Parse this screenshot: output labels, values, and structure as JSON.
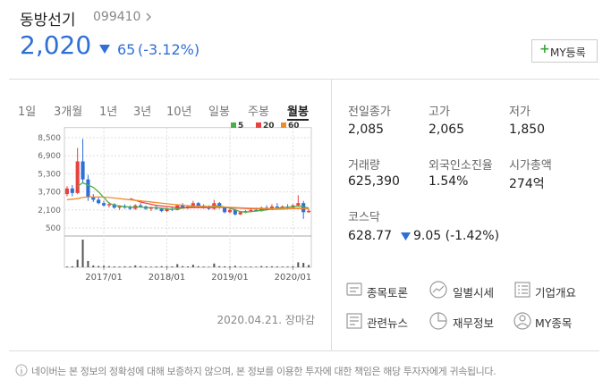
{
  "header": {
    "name": "동방선기",
    "code": "099410",
    "price": "2,020",
    "change": "65",
    "change_rate": "(-3.12%)",
    "my_button": "MY등록"
  },
  "tabs": [
    "1일",
    "3개월",
    "1년",
    "3년",
    "10년",
    "일봉",
    "주봉",
    "월봉"
  ],
  "chart_data": {
    "type": "candlestick",
    "categories": [
      null,
      null,
      null,
      null,
      null,
      null,
      null,
      "2017/01",
      null,
      null,
      null,
      null,
      null,
      null,
      null,
      null,
      null,
      null,
      null,
      "2018/01",
      null,
      null,
      null,
      null,
      null,
      null,
      null,
      null,
      null,
      null,
      null,
      "2019/01",
      null,
      null,
      null,
      null,
      null,
      null,
      null,
      null,
      null,
      null,
      null,
      "2020/01",
      null,
      null,
      null
    ],
    "open": [
      3500,
      4000,
      3600,
      6400,
      4800,
      3200,
      3000,
      2700,
      2500,
      2600,
      2300,
      2400,
      2300,
      2200,
      2500,
      2400,
      2200,
      2300,
      2200,
      2000,
      2200,
      2100,
      2500,
      2300,
      2400,
      2700,
      2400,
      2300,
      2200,
      2700,
      2300,
      1900,
      2100,
      1700,
      1900,
      1950,
      2100,
      2000,
      2300,
      2200,
      2400,
      2300,
      2400,
      2300,
      2500,
      2700,
      1900
    ],
    "high": [
      4200,
      4300,
      7600,
      8400,
      5200,
      3500,
      3200,
      2900,
      2800,
      2700,
      2500,
      2600,
      2500,
      2600,
      2700,
      2500,
      2400,
      2500,
      2300,
      2300,
      2400,
      2600,
      2700,
      2500,
      2900,
      2800,
      2600,
      2500,
      3000,
      2800,
      2400,
      2200,
      2200,
      2000,
      2100,
      2200,
      2300,
      2400,
      2500,
      2600,
      2700,
      2500,
      2600,
      2600,
      3400,
      2900,
      2200
    ],
    "low": [
      3300,
      3300,
      3500,
      4500,
      2900,
      2800,
      2600,
      2400,
      2300,
      2200,
      2100,
      2200,
      2100,
      2100,
      2300,
      2100,
      2000,
      2100,
      1900,
      1900,
      2000,
      2050,
      2200,
      2150,
      2300,
      2300,
      2200,
      2100,
      2100,
      2200,
      1800,
      1800,
      1600,
      1650,
      1800,
      1900,
      1950,
      1950,
      2100,
      2100,
      2200,
      2200,
      2200,
      2200,
      2400,
      1300,
      1850
    ],
    "close": [
      4000,
      3600,
      6400,
      4800,
      3200,
      3000,
      2700,
      2500,
      2600,
      2300,
      2400,
      2300,
      2200,
      2500,
      2400,
      2200,
      2300,
      2200,
      2000,
      2200,
      2100,
      2500,
      2300,
      2400,
      2700,
      2400,
      2300,
      2200,
      2700,
      2300,
      1900,
      2100,
      1700,
      1900,
      2000,
      2100,
      2000,
      2300,
      2200,
      2400,
      2300,
      2400,
      2300,
      2500,
      2700,
      1900,
      2020
    ],
    "volume": [
      600,
      800,
      6000,
      22000,
      5000,
      1500,
      1000,
      1200,
      900,
      700,
      600,
      800,
      700,
      1500,
      900,
      600,
      500,
      700,
      900,
      800,
      700,
      2500,
      900,
      700,
      2000,
      800,
      600,
      500,
      3000,
      900,
      800,
      700,
      1200,
      600,
      500,
      600,
      500,
      1000,
      700,
      800,
      700,
      600,
      600,
      900,
      4000,
      3500,
      1800
    ],
    "up_color": "#e8423f",
    "down_color": "#2f6fd6",
    "series": [
      {
        "name": "5",
        "color": "#4cb04a",
        "values": [
          null,
          null,
          4200,
          4500,
          4300,
          4100,
          3700,
          3200,
          2700,
          2500,
          2450,
          2400,
          2350,
          2350,
          2350,
          2300,
          2300,
          2300,
          2250,
          2200,
          2150,
          2200,
          2250,
          2300,
          2400,
          2450,
          2420,
          2400,
          2450,
          2450,
          2350,
          2250,
          2100,
          1950,
          1900,
          1950,
          2000,
          2050,
          2100,
          2200,
          2250,
          2300,
          2330,
          2380,
          2440,
          2360,
          2280
        ]
      },
      {
        "name": "20",
        "color": "#e8423f",
        "values": [
          null,
          null,
          null,
          null,
          null,
          null,
          null,
          null,
          null,
          null,
          null,
          null,
          3100,
          2950,
          2800,
          2700,
          2600,
          2500,
          2450,
          2400,
          2350,
          2320,
          2300,
          2300,
          2300,
          2310,
          2300,
          2300,
          2320,
          2330,
          2320,
          2300,
          2270,
          2250,
          2230,
          2210,
          2200,
          2180,
          2170,
          2160,
          2170,
          2180,
          2200,
          2220,
          2240,
          2220,
          2200
        ]
      },
      {
        "name": "60",
        "color": "#f08c2e",
        "values": [
          3000,
          3050,
          3100,
          3200,
          3250,
          3250,
          3250,
          3220,
          3200,
          3150,
          3100,
          3050,
          3000,
          2950,
          2900,
          2850,
          2800,
          2750,
          2700,
          2650,
          2600,
          2560,
          2520,
          2480,
          2450,
          2430,
          2410,
          2390,
          2380,
          2370,
          2350,
          2330,
          2310,
          2290,
          2270,
          2250,
          2240,
          2230,
          2220,
          2210,
          2200,
          2200,
          2200,
          2210,
          2220,
          2210,
          2200
        ]
      }
    ],
    "ylim": [
      0,
      9000
    ],
    "yticks": [
      {
        "value": 8500,
        "label": "8,500"
      },
      {
        "value": 6900,
        "label": "6,900"
      },
      {
        "value": 5300,
        "label": "5,300"
      },
      {
        "value": 3700,
        "label": "3,700"
      },
      {
        "value": 2100,
        "label": "2,100"
      },
      500
    ],
    "grid": true
  },
  "timestamp": "2020.04.21. 장마감",
  "stats": [
    {
      "label": "전일종가",
      "value": "2,085"
    },
    {
      "label": "고가",
      "value": "2,065"
    },
    {
      "label": "저가",
      "value": "1,850"
    },
    {
      "label": "거래량",
      "value": "625,390"
    },
    {
      "label": "외국인소진율",
      "value": "1.54%"
    },
    {
      "label": "시가총액",
      "value": "274억"
    }
  ],
  "index": {
    "label": "코스닥",
    "value": "628.77",
    "change": "9.05 (-1.42%)"
  },
  "links": [
    "종목토론",
    "일별시세",
    "기업개요",
    "관련뉴스",
    "재무정보",
    "MY종목"
  ],
  "notice": "네이버는 본 정보의 정확성에 대해 보증하지 않으며, 본 정보를 이용한 투자에 대한 책임은 해당 투자자에게 귀속됩니다."
}
